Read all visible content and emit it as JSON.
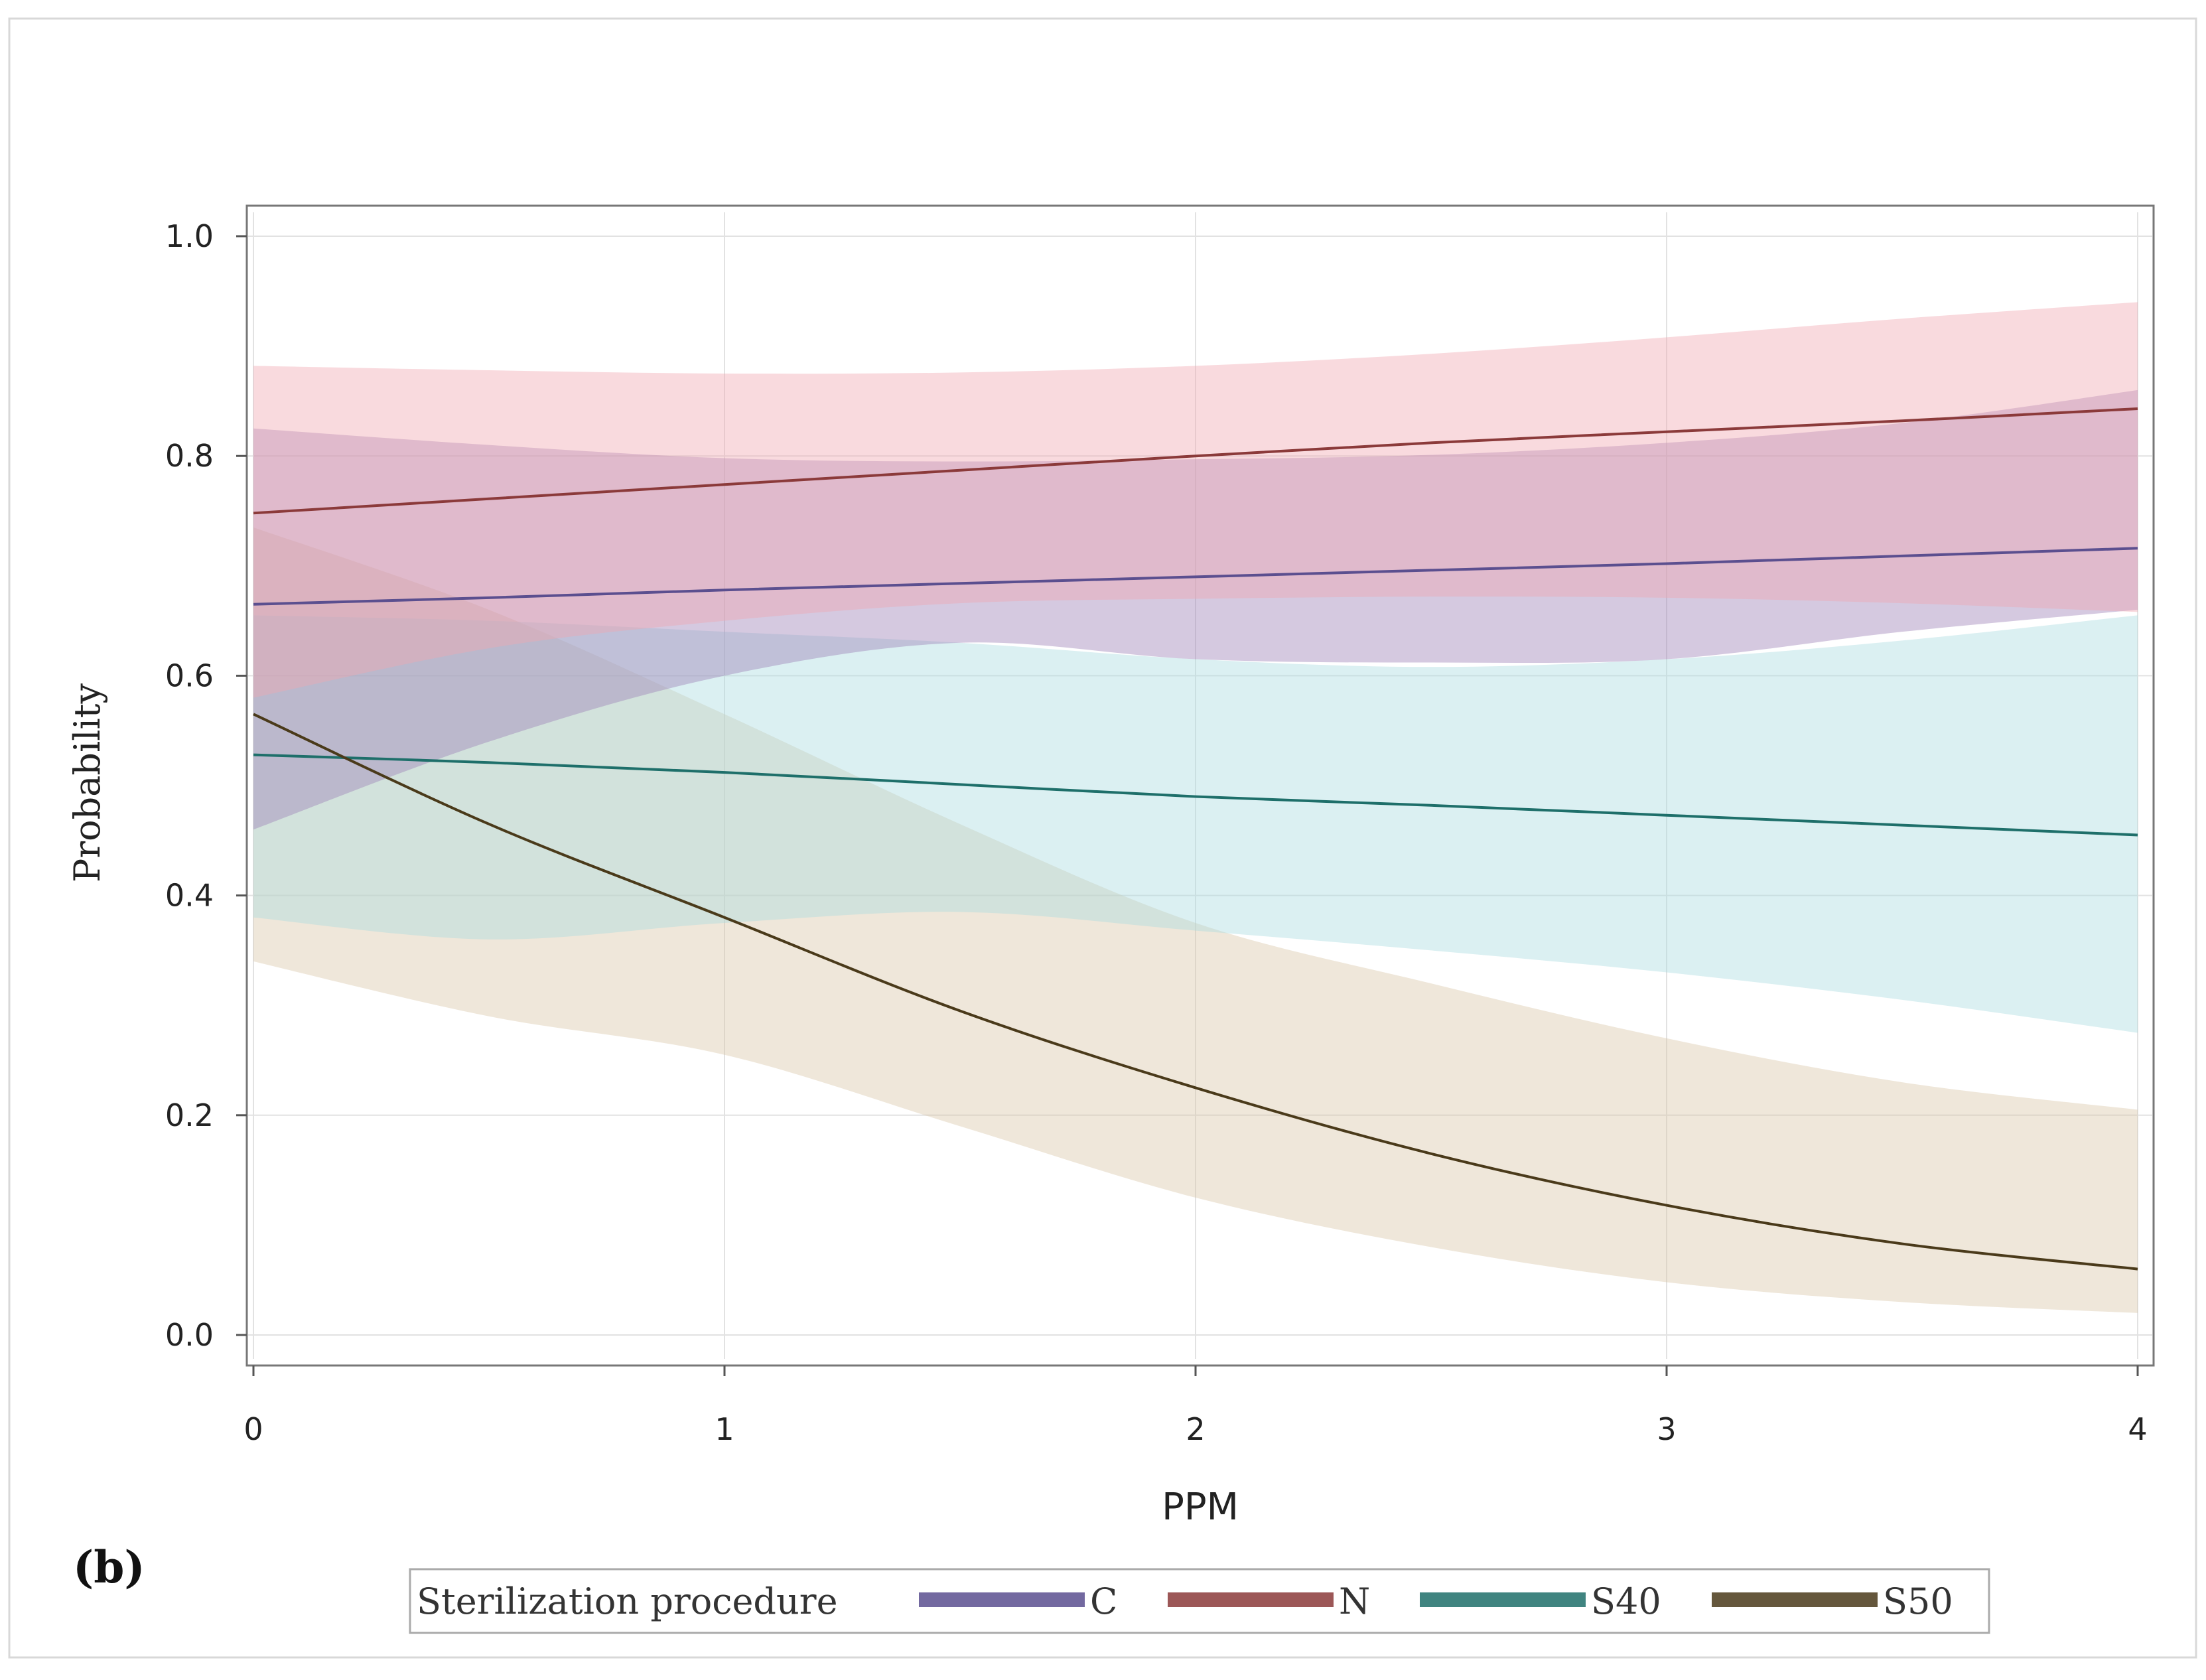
{
  "panel_label": "(b)",
  "chart_data": {
    "type": "line",
    "title": "",
    "xlabel": "PPM",
    "ylabel": "Probability",
    "xlim": [
      0,
      4
    ],
    "ylim": [
      0,
      1
    ],
    "x_ticks": [
      "0",
      "1",
      "2",
      "3",
      "4"
    ],
    "y_ticks": [
      "0.0",
      "0.2",
      "0.4",
      "0.6",
      "0.8",
      "1.0"
    ],
    "grid": true,
    "x": [
      0,
      0.5,
      1,
      1.5,
      2,
      2.5,
      3,
      3.5,
      4
    ],
    "legend": {
      "title": "Sterilization procedure",
      "position": "bottom"
    },
    "series": [
      {
        "name": "C",
        "color": "#5b4f8f",
        "band_color": "#9a7fb5",
        "values": [
          0.665,
          0.671,
          0.678,
          0.684,
          0.69,
          0.696,
          0.702,
          0.709,
          0.716
        ],
        "upper": [
          0.825,
          0.81,
          0.798,
          0.795,
          0.797,
          0.801,
          0.812,
          0.83,
          0.86
        ],
        "lower": [
          0.46,
          0.54,
          0.6,
          0.63,
          0.615,
          0.612,
          0.615,
          0.64,
          0.66
        ]
      },
      {
        "name": "N",
        "color": "#8b3a3a",
        "band_color": "#f0a7b0",
        "values": [
          0.748,
          0.761,
          0.774,
          0.787,
          0.8,
          0.812,
          0.822,
          0.832,
          0.843
        ],
        "upper": [
          0.882,
          0.878,
          0.875,
          0.876,
          0.882,
          0.893,
          0.908,
          0.925,
          0.94
        ],
        "lower": [
          0.58,
          0.625,
          0.65,
          0.666,
          0.67,
          0.672,
          0.671,
          0.666,
          0.658
        ]
      },
      {
        "name": "S40",
        "color": "#1e6f6a",
        "band_color": "#a9dbe0",
        "values": [
          0.528,
          0.521,
          0.512,
          0.501,
          0.49,
          0.482,
          0.473,
          0.464,
          0.455
        ],
        "upper": [
          0.655,
          0.65,
          0.64,
          0.63,
          0.615,
          0.608,
          0.615,
          0.632,
          0.655
        ],
        "lower": [
          0.38,
          0.36,
          0.375,
          0.385,
          0.368,
          0.35,
          0.33,
          0.305,
          0.275
        ]
      },
      {
        "name": "S50",
        "color": "#4a3a1a",
        "band_color": "#d9c6a8",
        "values": [
          0.565,
          0.465,
          0.38,
          0.295,
          0.225,
          0.165,
          0.118,
          0.083,
          0.06
        ],
        "upper": [
          0.735,
          0.66,
          0.565,
          0.465,
          0.375,
          0.32,
          0.27,
          0.23,
          0.205
        ],
        "lower": [
          0.34,
          0.29,
          0.255,
          0.19,
          0.125,
          0.08,
          0.048,
          0.03,
          0.02
        ]
      }
    ]
  }
}
